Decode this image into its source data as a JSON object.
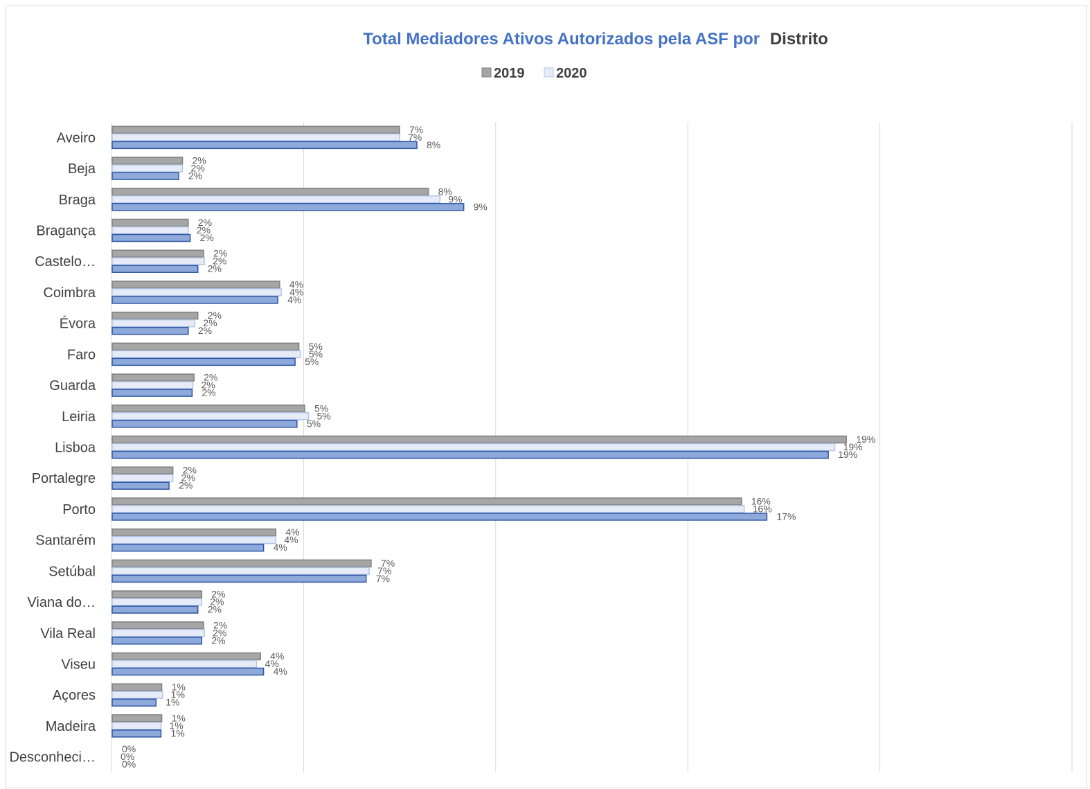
{
  "chart_data": {
    "type": "bar",
    "orientation": "horizontal",
    "title_part1": "Total Mediadores Ativos Autorizados pela ASF por",
    "title_part2": "Distrito",
    "legend_position": "top-center",
    "grid": "vertical",
    "xlim": [
      0,
      0.25
    ],
    "categories": [
      "Aveiro",
      "Beja",
      "Braga",
      "Bragança",
      "Castelo…",
      "Coimbra",
      "Évora",
      "Faro",
      "Guarda",
      "Leiria",
      "Lisboa",
      "Portalegre",
      "Porto",
      "Santarém",
      "Setúbal",
      "Viana do…",
      "Vila Real",
      "Viseu",
      "Açores",
      "Madeira",
      "Desconheci…"
    ],
    "series": [
      {
        "name": "2019",
        "color": "#a6a6a6",
        "values": [
          0.0748,
          0.0183,
          0.0823,
          0.0198,
          0.0238,
          0.0436,
          0.0223,
          0.0486,
          0.0213,
          0.0501,
          0.1911,
          0.0158,
          0.1638,
          0.0426,
          0.0674,
          0.0233,
          0.0238,
          0.0386,
          0.0129,
          0.0129,
          0.0
        ],
        "labels": [
          "7%",
          "2%",
          "8%",
          "2%",
          "2%",
          "4%",
          "2%",
          "5%",
          "2%",
          "5%",
          "19%",
          "2%",
          "16%",
          "4%",
          "7%",
          "2%",
          "2%",
          "4%",
          "1%",
          "1%",
          "0%"
        ]
      },
      {
        "name": "2020",
        "color": "#e6ebf8",
        "values": [
          0.0748,
          0.0183,
          0.0853,
          0.0198,
          0.024,
          0.044,
          0.0215,
          0.049,
          0.021,
          0.0511,
          0.1881,
          0.0158,
          0.1645,
          0.0426,
          0.0669,
          0.0233,
          0.024,
          0.0376,
          0.0131,
          0.0127,
          0.0
        ],
        "labels": [
          "7%",
          "2%",
          "9%",
          "2%",
          "2%",
          "4%",
          "2%",
          "5%",
          "2%",
          "5%",
          "19%",
          "2%",
          "16%",
          "4%",
          "7%",
          "2%",
          "2%",
          "4%",
          "1%",
          "1%",
          "0%"
        ]
      },
      {
        "name": "",
        "color": "#8eaadb",
        "values": [
          0.0793,
          0.0173,
          0.0915,
          0.0203,
          0.0223,
          0.0431,
          0.0198,
          0.0476,
          0.0208,
          0.0481,
          0.1864,
          0.0148,
          0.1704,
          0.0394,
          0.0661,
          0.0223,
          0.0233,
          0.0394,
          0.0114,
          0.0127,
          0.0
        ],
        "labels": [
          "8%",
          "2%",
          "9%",
          "2%",
          "2%",
          "4%",
          "2%",
          "5%",
          "2%",
          "5%",
          "19%",
          "2%",
          "17%",
          "4%",
          "7%",
          "2%",
          "2%",
          "4%",
          "1%",
          "1%",
          "0%"
        ]
      }
    ],
    "colors": {
      "title_blue": "#4472c4",
      "title_gray": "#404040",
      "series_2019_border": "#7f7f7f",
      "series_2020_border": "#b4c6e7",
      "series_3_border": "#2f55a4",
      "gridline": "#d9d9d9"
    }
  }
}
